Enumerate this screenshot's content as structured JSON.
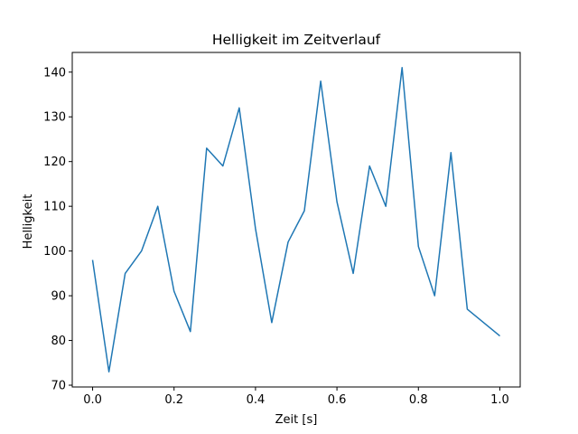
{
  "chart_data": {
    "type": "line",
    "title": "Helligkeit im Zeitverlauf",
    "xlabel": "Zeit [s]",
    "ylabel": "Helligkeit",
    "xlim": [
      -0.05,
      1.05
    ],
    "ylim": [
      69.6,
      144.4
    ],
    "xticks": [
      0.0,
      0.2,
      0.4,
      0.6,
      0.8,
      1.0
    ],
    "xtick_labels": [
      "0.0",
      "0.2",
      "0.4",
      "0.6",
      "0.8",
      "1.0"
    ],
    "yticks": [
      70,
      80,
      90,
      100,
      110,
      120,
      130,
      140
    ],
    "ytick_labels": [
      "70",
      "80",
      "90",
      "100",
      "110",
      "120",
      "130",
      "140"
    ],
    "grid": false,
    "series": [
      {
        "color": "#1f77b4",
        "x": [
          0.0,
          0.04,
          0.08,
          0.12,
          0.16,
          0.2,
          0.24,
          0.28,
          0.32,
          0.36,
          0.4,
          0.44,
          0.48,
          0.52,
          0.56,
          0.6,
          0.64,
          0.68,
          0.72,
          0.76,
          0.8,
          0.84,
          0.88,
          0.92,
          1.0
        ],
        "y": [
          98,
          73,
          95,
          100,
          110,
          91,
          82,
          123,
          119,
          132,
          105,
          84,
          102,
          109,
          138,
          111,
          95,
          119,
          110,
          141,
          101,
          90,
          122,
          87,
          81
        ]
      }
    ]
  }
}
